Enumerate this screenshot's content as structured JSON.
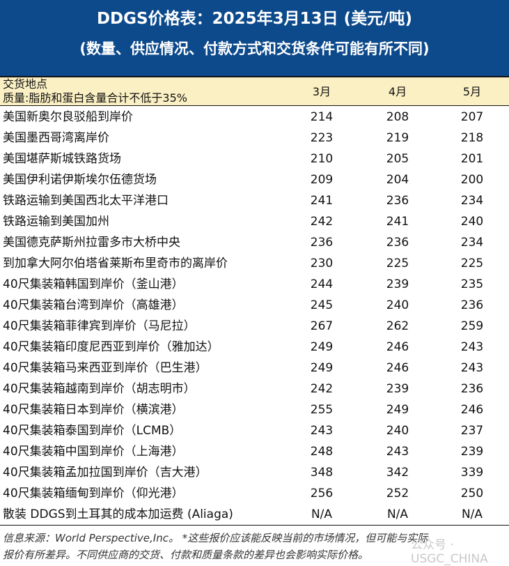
{
  "title": "DDGS价格表：2025年3月13日 (美元/吨)",
  "subtitle": "(数量、供应情况、付款方式和交货条件可能有所不同)",
  "header": {
    "location": "交货地点",
    "quality": "质量:脂肪和蛋白含量合计不低于35%",
    "months": [
      "3月",
      "4月",
      "5月"
    ]
  },
  "rows": [
    {
      "label": "美国新奥尔良驳船到岸价",
      "v": [
        "214",
        "208",
        "207"
      ]
    },
    {
      "label": "美国墨西哥湾离岸价",
      "v": [
        "223",
        "219",
        "218"
      ]
    },
    {
      "label": "美国堪萨斯城铁路货场",
      "v": [
        "210",
        "205",
        "201"
      ]
    },
    {
      "label": "美国伊利诺伊斯埃尔伍德货场",
      "v": [
        "209",
        "204",
        "200"
      ]
    },
    {
      "label": "铁路运输到美国西北太平洋港口",
      "v": [
        "241",
        "236",
        "234"
      ]
    },
    {
      "label": "铁路运输到美国加州",
      "v": [
        "242",
        "241",
        "240"
      ]
    },
    {
      "label": "美国德克萨斯州拉雷多市大桥中央",
      "v": [
        "236",
        "236",
        "234"
      ]
    },
    {
      "label": "到加拿大阿尔伯塔省莱斯布里奇市的离岸价",
      "v": [
        "230",
        "225",
        "225"
      ]
    },
    {
      "label": "40尺集装箱韩国到岸价（釜山港）",
      "v": [
        "244",
        "239",
        "235"
      ]
    },
    {
      "label": "40尺集装箱台湾到岸价（高雄港）",
      "v": [
        "245",
        "240",
        "236"
      ]
    },
    {
      "label": "40尺集装箱菲律宾到岸价（马尼拉）",
      "v": [
        "267",
        "262",
        "259"
      ]
    },
    {
      "label": "40尺集装箱印度尼西亚到岸价（雅加达）",
      "v": [
        "249",
        "246",
        "243"
      ]
    },
    {
      "label": "40尺集装箱马来西亚到岸价（巴生港）",
      "v": [
        "249",
        "246",
        "243"
      ]
    },
    {
      "label": "40尺集装箱越南到岸价（胡志明市）",
      "v": [
        "242",
        "239",
        "236"
      ]
    },
    {
      "label": "40尺集装箱日本到岸价（横滨港）",
      "v": [
        "255",
        "249",
        "246"
      ]
    },
    {
      "label": "40尺集装箱泰国到岸价（LCMB）",
      "v": [
        "243",
        "240",
        "237"
      ]
    },
    {
      "label": "40尺集装箱中国到岸价（上海港）",
      "v": [
        "248",
        "243",
        "239"
      ]
    },
    {
      "label": "40尺集装箱孟加拉国到岸价（吉大港）",
      "v": [
        "348",
        "342",
        "339"
      ]
    },
    {
      "label": "40尺集装箱缅甸到岸价（仰光港）",
      "v": [
        "256",
        "252",
        "250"
      ]
    },
    {
      "label": "散装 DDGS到土耳其的成本加运费 (Aliaga)",
      "v": [
        "N/A",
        "N/A",
        "N/A"
      ]
    }
  ],
  "footer": {
    "line1": "信息来源：World Perspective,Inc。 *这些报价应该能反映当前的市场情况，但可能与实际",
    "line2": "报价有所差异。不同供应商的交货、付款和质量条款的差异也会影响实际价格。"
  },
  "watermark": "公众号 · USGC_CHINA",
  "colors": {
    "header_bg": "#0d4a8c",
    "colhdr_bg": "#fbf0c3"
  }
}
